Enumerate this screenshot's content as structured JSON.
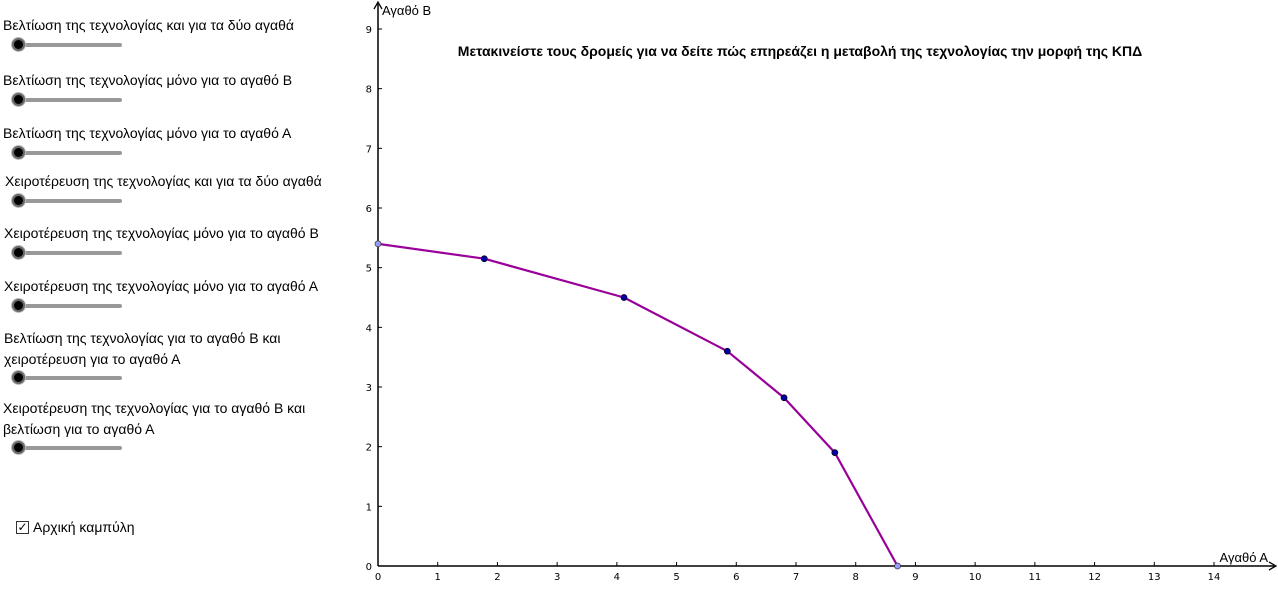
{
  "sliders": [
    {
      "lines": [
        "Βελτίωση της τεχνολογίας και για τα δύο αγαθά"
      ],
      "value": 0
    },
    {
      "lines": [
        "Βελτίωση της τεχνολογίας μόνο για το αγαθό Β"
      ],
      "value": 0
    },
    {
      "lines": [
        "Βελτίωση της τεχνολογίας μόνο για το αγαθό Α"
      ],
      "value": 0
    },
    {
      "lines": [
        "Χειροτέρευση της τεχνολογίας και για τα δύο αγαθά"
      ],
      "value": 0
    },
    {
      "lines": [
        "Χειροτέρευση της τεχνολογίας μόνο για το αγαθό Β"
      ],
      "value": 0
    },
    {
      "lines": [
        "Χειροτέρευση της τεχνολογίας μόνο για το αγαθό Α"
      ],
      "value": 0
    },
    {
      "lines": [
        "Βελτίωση της τεχνολογίας για το αγαθό Β και",
        "χειροτέρευση για το αγαθό Α"
      ],
      "value": 0
    },
    {
      "lines": [
        "Χειροτέρευση της τεχνολογίας για το αγαθό Β και",
        "βελτίωση για το αγαθό Α"
      ],
      "value": 0
    }
  ],
  "checkbox": {
    "label": "Αρχική καμπύλη",
    "checked": true,
    "check_glyph": "✓"
  },
  "chart_data": {
    "type": "line",
    "title": "Μετακινείστε τους δρομείς για να δείτε πώς επηρεάζει η μεταβολή της τεχνολογίας την μορφή της ΚΠΔ",
    "xlabel": "Αγαθό Α",
    "ylabel": "Αγαθό Β",
    "xlim": [
      0,
      15
    ],
    "ylim": [
      0,
      9.3
    ],
    "xticks": [
      0,
      1,
      2,
      3,
      4,
      5,
      6,
      7,
      8,
      9,
      10,
      11,
      12,
      13,
      14
    ],
    "yticks": [
      0,
      1,
      2,
      3,
      4,
      5,
      6,
      7,
      8,
      9
    ],
    "grid": false,
    "series": [
      {
        "x": [
          0,
          1.78,
          4.12,
          5.85,
          6.8,
          7.65,
          8.7
        ],
        "y": [
          5.4,
          5.15,
          4.5,
          3.6,
          2.82,
          1.9,
          0
        ],
        "color": "#990099",
        "endpoint_color": "#9999ff",
        "point_color": "#0000aa"
      }
    ]
  }
}
